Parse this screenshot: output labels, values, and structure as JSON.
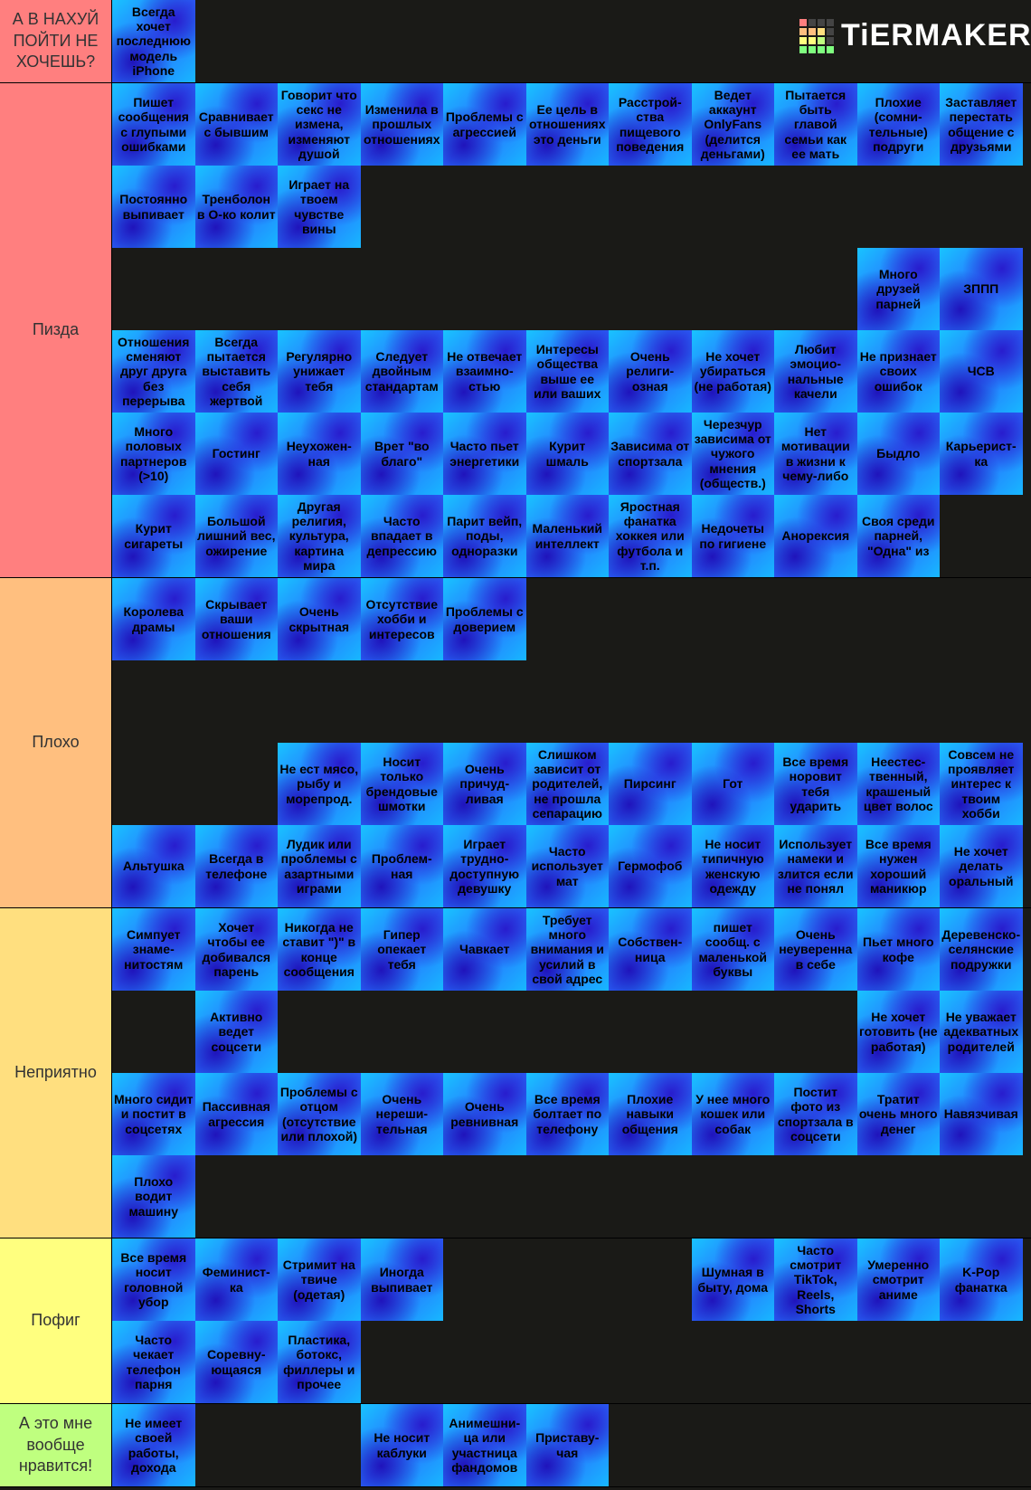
{
  "logo": "TiERMAKER",
  "tiers": [
    {
      "label": "А В НАХУЙ ПОЙТИ НЕ ХОЧЕШЬ?",
      "color": "#ff7f7f",
      "rows": [
        [
          "Всегда хочет последнюю модель iPhone"
        ]
      ]
    },
    {
      "label": "Пизда",
      "color": "#ff7f7f",
      "rows": [
        [
          "Пишет сообщения с глупыми ошибками",
          "Сравнивает с бывшим",
          "Говорит что секс не измена, изменяют душой",
          "Изменила в прошлых отношениях",
          "Проблемы с агрессией",
          "Ее цель в отношениях это деньги",
          "Расстрой-ства пищевого поведения",
          "Ведет аккаунт OnlyFans (делится деньгами)",
          "Пытается быть главой семьи как ее мать",
          "Плохие (сомни-тельные) подруги",
          "Заставляет перестать общение с друзьями"
        ],
        [
          "Постоянно выпивает",
          "Тренболон в О-ко колит",
          "Играет на твоем чувстве вины"
        ],
        [
          null,
          null,
          null,
          null,
          null,
          null,
          null,
          null,
          null,
          "Много друзей парней",
          "ЗППП"
        ],
        [
          "Отношения сменяют друг друга без перерыва",
          "Всегда пытается выставить себя жертвой",
          "Регулярно унижает тебя",
          "Следует двойным стандартам",
          "Не отвечает взаимно-стью",
          "Интересы общества выше ее или ваших",
          "Очень религи-озная",
          "Не хочет убираться (не работая)",
          "Любит эмоцио-нальные качели",
          "Не признает своих ошибок",
          "ЧСВ"
        ],
        [
          "Много половых партнеров (>10)",
          "Гостинг",
          "Неухожен-ная",
          "Врет \"во благо\"",
          "Часто пьет энергетики",
          "Курит шмаль",
          "Зависима от спортзала",
          "Черезчур зависима от чужого мнения (обществ.)",
          "Нет мотивации в жизни к чему-либо",
          "Быдло",
          "Карьерист-ка"
        ],
        [
          "Курит сигареты",
          "Большой лишний вес, ожирение",
          "Другая религия, культура, картина мира",
          "Часто впадает в депрессию",
          "Парит вейп, поды, одноразки",
          "Маленький интеллект",
          "Яростная фанатка хоккея или футбола и т.п.",
          "Недочеты по гигиене",
          "Анорексия",
          "Своя среди парней, \"Одна\" из"
        ]
      ]
    },
    {
      "label": "Плохо",
      "color": "#ffbf7f",
      "rows": [
        [
          "Королева драмы",
          "Скрывает ваши отношения",
          "Очень скрытная",
          "Отсутствие хобби и интересов",
          "Проблемы с доверием"
        ],
        [],
        [
          null,
          null,
          "Не ест мясо, рыбу и морепрод.",
          "Носит только брендовые шмотки",
          "Очень причуд-ливая",
          "Слишком зависит от родителей, не прошла сепарацию",
          "Пирсинг",
          "Гот",
          "Все время норовит тебя ударить",
          "Неестес-твенный, крашеный цвет волос",
          "Совсем не проявляет интерес к твоим хобби"
        ],
        [
          "Альтушка",
          "Всегда в телефоне",
          "Лудик или проблемы с азартными играми",
          "Проблем-ная",
          "Играет трудно-доступную девушку",
          "Часто использует мат",
          "Гермофоб",
          "Не носит типичную женскую одежду",
          "Использует намеки и злится если не понял",
          "Все время нужен хороший маникюр",
          "Не хочет делать оральный"
        ]
      ]
    },
    {
      "label": "Неприятно",
      "color": "#ffdf7f",
      "rows": [
        [
          "Симпует знаме-нитостям",
          "Хочет чтобы ее добивался парень",
          "Никогда не ставит \")\" в конце сообщения",
          "Гипер опекает тебя",
          "Чавкает",
          "Требует много внимания и усилий в свой адрес",
          "Собствен-ница",
          "пишет сообщ. с маленькой буквы",
          "Очень неуверенна в себе",
          "Пьет много кофе",
          "Деревенско-селянские подружки"
        ],
        [
          null,
          "Активно ведет соцсети",
          null,
          null,
          null,
          null,
          null,
          null,
          null,
          "Не хочет готовить (не работая)",
          "Не уважает адекватных родителей"
        ],
        [
          "Много сидит и постит в соцсетях",
          "Пассивная агрессия",
          "Проблемы с отцом (отсутствие или плохой)",
          "Очень нереши-тельная",
          "Очень ревнивная",
          "Все время болтает по телефону",
          "Плохие навыки общения",
          "У нее много кошек или собак",
          "Постит фото из спортзала в соцсети",
          "Тратит очень много денег",
          "Навязчивая"
        ],
        [
          "Плохо водит машину"
        ]
      ]
    },
    {
      "label": "Пофиг",
      "color": "#ffff7f",
      "rows": [
        [
          "Все время носит головной убор",
          "Феминист-ка",
          "Стримит на твиче (одетая)",
          "Иногда выпивает",
          null,
          null,
          null,
          "Шумная в быту, дома",
          "Часто смотрит TikTok, Reels, Shorts",
          "Умеренно смотрит аниме",
          "K-Pop фанатка"
        ],
        [
          "Часто чекает телефон парня",
          "Соревну-ющаяся",
          "Пластика, ботокс, филлеры и прочее"
        ]
      ]
    },
    {
      "label": "А это мне вообще нравится!",
      "color": "#bfff7f",
      "rows": [
        [
          "Не имеет своей работы, дохода",
          null,
          null,
          "Не носит каблуки",
          "Анимешни-ца или участница фандомов",
          "Приставу-чая"
        ]
      ]
    }
  ]
}
